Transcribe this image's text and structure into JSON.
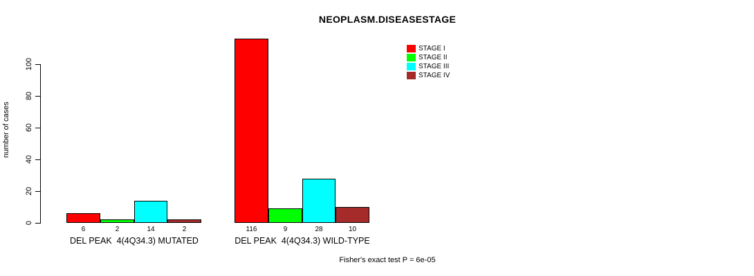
{
  "chart_data": {
    "type": "bar",
    "title": "NEOPLASM.DISEASESTAGE",
    "ylabel": "number of cases",
    "yticks": [
      0,
      20,
      40,
      60,
      80,
      100
    ],
    "ylim": [
      0,
      116
    ],
    "grid": false,
    "legend_position": "top-right",
    "bar_value_labels": true,
    "categories": [
      "DEL PEAK  4(4Q34.3) MUTATED",
      "DEL PEAK  4(4Q34.3) WILD-TYPE"
    ],
    "series": [
      {
        "name": "STAGE I",
        "color": "#FF0000",
        "values": [
          6,
          116
        ]
      },
      {
        "name": "STAGE II",
        "color": "#00FF00",
        "values": [
          2,
          9
        ]
      },
      {
        "name": "STAGE III",
        "color": "#00FFFF",
        "values": [
          14,
          28
        ]
      },
      {
        "name": "STAGE IV",
        "color": "#A52A2A",
        "values": [
          2,
          10
        ]
      }
    ],
    "annotation": "Fisher's exact test P = 6e-05"
  }
}
